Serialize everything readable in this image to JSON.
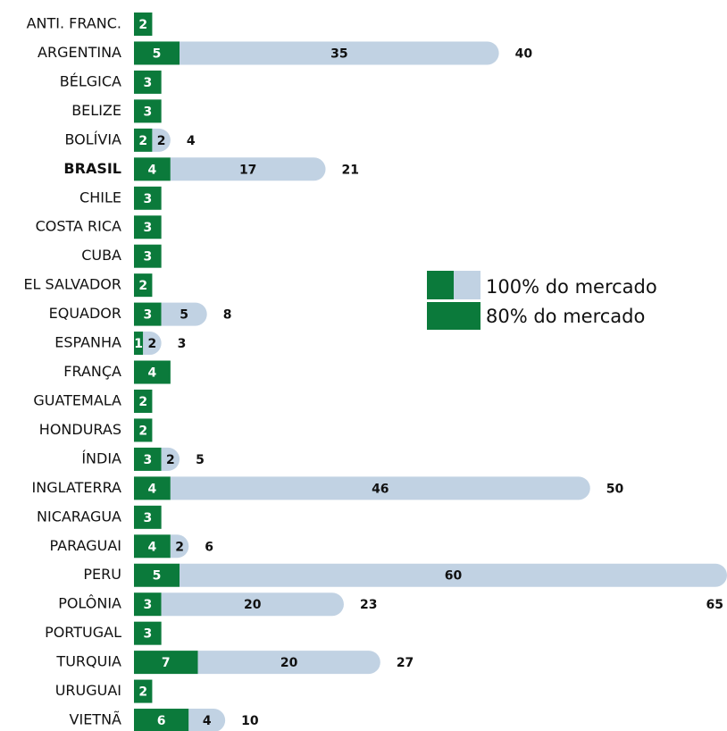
{
  "chart_data": {
    "type": "stacked-hbar",
    "categories": [
      "ANTI. FRANC.",
      "ARGENTINA",
      "BÉLGICA",
      "BELIZE",
      "BOLÍVIA",
      "BRASIL",
      "CHILE",
      "COSTA RICA",
      "CUBA",
      "EL SALVADOR",
      "EQUADOR",
      "ESPANHA",
      "FRANÇA",
      "GUATEMALA",
      "HONDURAS",
      "ÍNDIA",
      "INGLATERRA",
      "NICARAGUA",
      "PARAGUAI",
      "PERU",
      "POLÔNIA",
      "PORTUGAL",
      "TURQUIA",
      "URUGUAI",
      "VIETNÃ"
    ],
    "series": [
      {
        "name": "80% do mercado",
        "color": "#0b7a3b",
        "values": [
          2,
          5,
          3,
          3,
          2,
          4,
          3,
          3,
          3,
          2,
          3,
          1,
          4,
          2,
          2,
          3,
          4,
          3,
          4,
          5,
          3,
          3,
          7,
          2,
          6
        ]
      },
      {
        "name": "100% do mercado",
        "color": "#c1d2e3",
        "values": [
          null,
          35,
          null,
          null,
          2,
          17,
          null,
          null,
          null,
          null,
          5,
          2,
          null,
          null,
          null,
          2,
          46,
          null,
          2,
          60,
          20,
          null,
          20,
          null,
          4
        ]
      }
    ],
    "totals": [
      null,
      40,
      null,
      null,
      4,
      21,
      null,
      null,
      null,
      null,
      8,
      3,
      null,
      null,
      null,
      5,
      50,
      null,
      6,
      65,
      23,
      null,
      27,
      null,
      10
    ],
    "xlim": [
      0,
      65
    ]
  }
}
